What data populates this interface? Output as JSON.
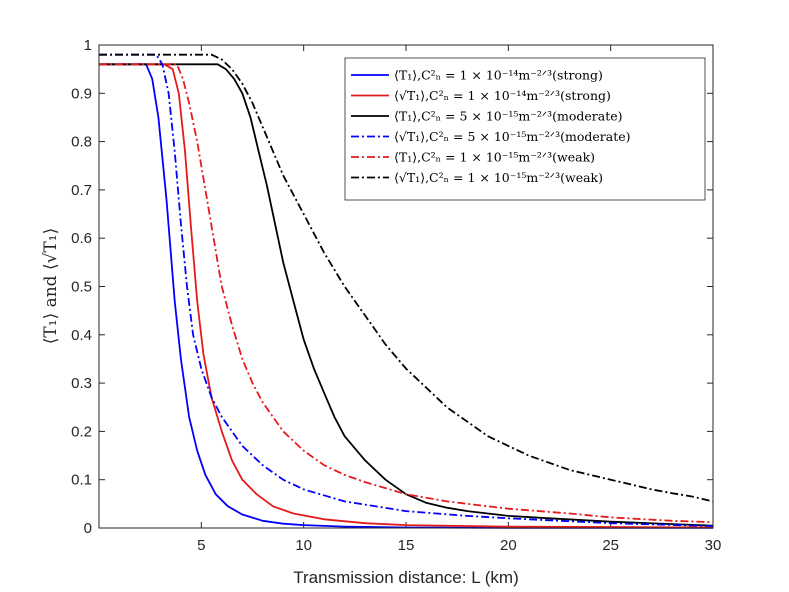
{
  "chart_data": {
    "type": "line",
    "title": "",
    "xlabel": "Transmission distance: L (km)",
    "ylabel": "⟨T₁⟩ and ⟨√T₁⟩",
    "xlim": [
      0,
      30
    ],
    "ylim": [
      0,
      1
    ],
    "xticks": [
      5,
      10,
      15,
      20,
      25,
      30
    ],
    "yticks": [
      0,
      0.1,
      0.2,
      0.3,
      0.4,
      0.5,
      0.6,
      0.7,
      0.8,
      0.9,
      1
    ],
    "ytick_labels": [
      "0",
      "0.1",
      "0.2",
      "0.3",
      "0.4",
      "0.5",
      "0.6",
      "0.7",
      "0.8",
      "0.9",
      "1"
    ],
    "legend_position": "top-right",
    "series": [
      {
        "name": "⟨T₁⟩, C²ₙ = 1 × 10⁻¹⁴ m⁻²ᐟ³ (strong)",
        "color": "#0000ff",
        "style": "solid",
        "points": [
          [
            0,
            0.96
          ],
          [
            2.3,
            0.96
          ],
          [
            2.6,
            0.93
          ],
          [
            2.9,
            0.85
          ],
          [
            3.3,
            0.68
          ],
          [
            3.7,
            0.47
          ],
          [
            4.0,
            0.35
          ],
          [
            4.4,
            0.23
          ],
          [
            4.8,
            0.16
          ],
          [
            5.2,
            0.11
          ],
          [
            5.7,
            0.07
          ],
          [
            6.3,
            0.045
          ],
          [
            7.0,
            0.028
          ],
          [
            8.0,
            0.015
          ],
          [
            9.0,
            0.009
          ],
          [
            10,
            0.006
          ],
          [
            12,
            0.003
          ],
          [
            15,
            0.001
          ],
          [
            20,
            0.0005
          ],
          [
            30,
            0.0002
          ]
        ]
      },
      {
        "name": "⟨√T₁⟩, C²ₙ = 1 × 10⁻¹⁴ m⁻²ᐟ³ (strong)",
        "color": "#e41a1c",
        "style": "solid",
        "points": [
          [
            0,
            0.96
          ],
          [
            3.2,
            0.96
          ],
          [
            3.6,
            0.95
          ],
          [
            3.9,
            0.9
          ],
          [
            4.2,
            0.78
          ],
          [
            4.5,
            0.62
          ],
          [
            4.8,
            0.47
          ],
          [
            5.1,
            0.36
          ],
          [
            5.5,
            0.27
          ],
          [
            6.0,
            0.2
          ],
          [
            6.5,
            0.14
          ],
          [
            7.0,
            0.1
          ],
          [
            7.7,
            0.07
          ],
          [
            8.5,
            0.045
          ],
          [
            9.5,
            0.03
          ],
          [
            11,
            0.018
          ],
          [
            13,
            0.01
          ],
          [
            15,
            0.006
          ],
          [
            20,
            0.003
          ],
          [
            25,
            0.002
          ],
          [
            30,
            0.001
          ]
        ]
      },
      {
        "name": "⟨T₁⟩, C²ₙ = 5 × 10⁻¹⁵ m⁻²ᐟ³ (moderate)",
        "color": "#000000",
        "style": "solid",
        "points": [
          [
            0,
            0.96
          ],
          [
            5.8,
            0.96
          ],
          [
            6.2,
            0.95
          ],
          [
            6.6,
            0.93
          ],
          [
            7.0,
            0.9
          ],
          [
            7.4,
            0.85
          ],
          [
            7.8,
            0.78
          ],
          [
            8.2,
            0.71
          ],
          [
            8.6,
            0.63
          ],
          [
            9.0,
            0.55
          ],
          [
            9.5,
            0.47
          ],
          [
            10,
            0.39
          ],
          [
            10.5,
            0.33
          ],
          [
            11,
            0.28
          ],
          [
            11.5,
            0.23
          ],
          [
            12,
            0.19
          ],
          [
            13,
            0.14
          ],
          [
            14,
            0.1
          ],
          [
            15,
            0.07
          ],
          [
            16,
            0.052
          ],
          [
            17,
            0.042
          ],
          [
            18,
            0.035
          ],
          [
            20,
            0.025
          ],
          [
            22,
            0.02
          ],
          [
            25,
            0.013
          ],
          [
            28,
            0.008
          ],
          [
            30,
            0.005
          ]
        ]
      },
      {
        "name": "⟨√T₁⟩, C²ₙ = 5 × 10⁻¹⁵ m⁻²ᐟ³ (moderate)",
        "color": "#0000ff",
        "style": "dashdot",
        "points": [
          [
            0,
            0.98
          ],
          [
            2.8,
            0.98
          ],
          [
            3.1,
            0.96
          ],
          [
            3.4,
            0.9
          ],
          [
            3.7,
            0.78
          ],
          [
            4.0,
            0.63
          ],
          [
            4.3,
            0.5
          ],
          [
            4.6,
            0.4
          ],
          [
            5.0,
            0.33
          ],
          [
            5.5,
            0.27
          ],
          [
            6.0,
            0.23
          ],
          [
            6.5,
            0.2
          ],
          [
            7.0,
            0.17
          ],
          [
            8.0,
            0.13
          ],
          [
            9.0,
            0.1
          ],
          [
            10,
            0.08
          ],
          [
            12,
            0.055
          ],
          [
            15,
            0.035
          ],
          [
            18,
            0.025
          ],
          [
            20,
            0.02
          ],
          [
            25,
            0.01
          ],
          [
            30,
            0.004
          ]
        ]
      },
      {
        "name": "⟨T₁⟩, C²ₙ = 1 × 10⁻¹⁵ m⁻²ᐟ³ (weak)",
        "color": "#e41a1c",
        "style": "dashdot",
        "points": [
          [
            0,
            0.96
          ],
          [
            3.8,
            0.96
          ],
          [
            4.1,
            0.93
          ],
          [
            4.4,
            0.88
          ],
          [
            4.8,
            0.8
          ],
          [
            5.2,
            0.7
          ],
          [
            5.6,
            0.6
          ],
          [
            6.0,
            0.5
          ],
          [
            6.5,
            0.42
          ],
          [
            7.0,
            0.35
          ],
          [
            7.5,
            0.3
          ],
          [
            8.0,
            0.26
          ],
          [
            9.0,
            0.2
          ],
          [
            10,
            0.16
          ],
          [
            11,
            0.13
          ],
          [
            12,
            0.11
          ],
          [
            13,
            0.095
          ],
          [
            15,
            0.07
          ],
          [
            17,
            0.055
          ],
          [
            20,
            0.04
          ],
          [
            23,
            0.03
          ],
          [
            25,
            0.022
          ],
          [
            28,
            0.015
          ],
          [
            30,
            0.012
          ]
        ]
      },
      {
        "name": "⟨√T₁⟩, C²ₙ = 1 × 10⁻¹⁵ m⁻²ᐟ³ (weak)",
        "color": "#000000",
        "style": "dashdot",
        "points": [
          [
            0,
            0.98
          ],
          [
            5.5,
            0.98
          ],
          [
            6.0,
            0.97
          ],
          [
            6.5,
            0.95
          ],
          [
            7.0,
            0.92
          ],
          [
            7.5,
            0.88
          ],
          [
            8.0,
            0.83
          ],
          [
            8.5,
            0.78
          ],
          [
            9.0,
            0.73
          ],
          [
            9.5,
            0.69
          ],
          [
            10,
            0.65
          ],
          [
            10.5,
            0.61
          ],
          [
            11,
            0.57
          ],
          [
            12,
            0.5
          ],
          [
            13,
            0.44
          ],
          [
            14,
            0.38
          ],
          [
            15,
            0.33
          ],
          [
            16,
            0.29
          ],
          [
            17,
            0.25
          ],
          [
            18,
            0.22
          ],
          [
            19,
            0.19
          ],
          [
            20,
            0.17
          ],
          [
            21,
            0.15
          ],
          [
            22,
            0.135
          ],
          [
            23,
            0.12
          ],
          [
            24,
            0.11
          ],
          [
            25,
            0.1
          ],
          [
            26,
            0.09
          ],
          [
            27,
            0.08
          ],
          [
            28,
            0.072
          ],
          [
            29,
            0.065
          ],
          [
            30,
            0.055
          ]
        ]
      }
    ],
    "legend": [
      {
        "quantity": "⟨T₁⟩,",
        "cn2": "C²ₙ = 1 × 10⁻¹⁴m⁻²ᐟ³",
        "regime": "(strong)"
      },
      {
        "quantity": "⟨√T₁⟩,",
        "cn2": "C²ₙ = 1 × 10⁻¹⁴m⁻²ᐟ³",
        "regime": "(strong)"
      },
      {
        "quantity": "⟨T₁⟩,",
        "cn2": "C²ₙ = 5 × 10⁻¹⁵m⁻²ᐟ³",
        "regime": "(moderate)"
      },
      {
        "quantity": "⟨√T₁⟩,",
        "cn2": "C²ₙ = 5 × 10⁻¹⁵m⁻²ᐟ³",
        "regime": "(moderate)"
      },
      {
        "quantity": "⟨T₁⟩,",
        "cn2": "C²ₙ = 1 × 10⁻¹⁵m⁻²ᐟ³",
        "regime": "(weak)"
      },
      {
        "quantity": "⟨√T₁⟩,",
        "cn2": "C²ₙ = 1 × 10⁻¹⁵m⁻²ᐟ³",
        "regime": "(weak)"
      }
    ]
  }
}
